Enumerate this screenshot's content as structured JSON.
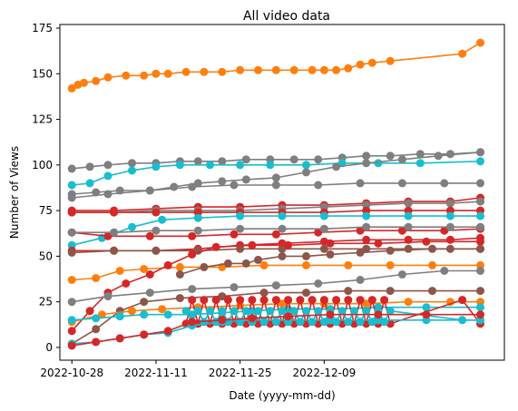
{
  "chart_data": {
    "type": "line",
    "title": "All video data",
    "xlabel": "Date (yyyy-mm-dd)",
    "ylabel": "Number of Views",
    "x_tick_labels": [
      "2022-10-28",
      "2022-11-11",
      "2022-11-25",
      "2022-12-09"
    ],
    "x_range": [
      "2022-10-26",
      "2023-01-08"
    ],
    "y_ticks": [
      0,
      25,
      50,
      75,
      100,
      125,
      150,
      175
    ],
    "ylim": [
      -7,
      177
    ],
    "grid": false,
    "legend": false,
    "marker": "circle",
    "series": [
      {
        "color": "#ff7f0e",
        "x": [
          "2022-10-28",
          "2022-10-29",
          "2022-10-30",
          "2022-11-01",
          "2022-11-03",
          "2022-11-06",
          "2022-11-09",
          "2022-11-11",
          "2022-11-13",
          "2022-11-16",
          "2022-11-19",
          "2022-11-22",
          "2022-11-25",
          "2022-11-28",
          "2022-12-01",
          "2022-12-04",
          "2022-12-07",
          "2022-12-09",
          "2022-12-11",
          "2022-12-13",
          "2022-12-15",
          "2022-12-17",
          "2022-12-20",
          "2023-01-01",
          "2023-01-04"
        ],
        "y": [
          142,
          144,
          145,
          146,
          148,
          149,
          149,
          150,
          150,
          151,
          151,
          151,
          152,
          152,
          152,
          152,
          152,
          152,
          152,
          153,
          155,
          156,
          157,
          161,
          167
        ]
      },
      {
        "color": "#7f7f7f",
        "x": [
          "2022-10-28",
          "2022-10-31",
          "2022-11-03",
          "2022-11-07",
          "2022-11-11",
          "2022-11-15",
          "2022-11-18",
          "2022-11-22",
          "2022-11-26",
          "2022-11-30",
          "2022-12-04",
          "2022-12-08",
          "2022-12-12",
          "2022-12-16",
          "2022-12-20",
          "2022-12-25",
          "2022-12-30",
          "2023-01-04"
        ],
        "y": [
          98,
          99,
          100,
          101,
          101,
          102,
          102,
          102,
          103,
          103,
          103,
          103,
          104,
          105,
          105,
          106,
          106,
          107
        ]
      },
      {
        "color": "#17becf",
        "x": [
          "2022-10-28",
          "2022-10-31",
          "2022-11-03",
          "2022-11-07",
          "2022-11-11",
          "2022-11-15",
          "2022-11-20",
          "2022-11-25",
          "2022-11-30",
          "2022-12-06",
          "2022-12-12",
          "2022-12-18",
          "2022-12-25",
          "2023-01-04"
        ],
        "y": [
          89,
          90,
          94,
          97,
          99,
          100,
          100,
          100,
          100,
          100,
          101,
          101,
          101,
          102
        ]
      },
      {
        "color": "#7f7f7f",
        "x": [
          "2022-10-28",
          "2022-11-01",
          "2022-11-05",
          "2022-11-10",
          "2022-11-14",
          "2022-11-18",
          "2022-11-22",
          "2022-11-26",
          "2022-12-01",
          "2022-12-06",
          "2022-12-11",
          "2022-12-16",
          "2022-12-22",
          "2022-12-28",
          "2023-01-04"
        ],
        "y": [
          84,
          85,
          86,
          86,
          88,
          90,
          91,
          92,
          93,
          96,
          99,
          101,
          103,
          105,
          107
        ]
      },
      {
        "color": "#7f7f7f",
        "x": [
          "2022-10-28",
          "2022-11-03",
          "2022-11-10",
          "2022-11-17",
          "2022-11-24",
          "2022-12-01",
          "2022-12-08",
          "2022-12-15",
          "2022-12-22",
          "2022-12-29",
          "2023-01-04"
        ],
        "y": [
          82,
          84,
          86,
          88,
          89,
          89,
          89,
          90,
          90,
          90,
          90
        ]
      },
      {
        "color": "#d62728",
        "x": [
          "2022-10-28",
          "2022-11-04",
          "2022-11-11",
          "2022-11-18",
          "2022-11-25",
          "2022-12-02",
          "2022-12-09",
          "2022-12-16",
          "2022-12-23",
          "2022-12-30",
          "2023-01-04"
        ],
        "y": [
          75,
          75,
          76,
          77,
          77,
          78,
          78,
          79,
          80,
          80,
          82
        ]
      },
      {
        "color": "#7f7f7f",
        "x": [
          "2022-10-28",
          "2022-11-04",
          "2022-11-11",
          "2022-11-18",
          "2022-11-25",
          "2022-12-02",
          "2022-12-09",
          "2022-12-16",
          "2022-12-23",
          "2022-12-30",
          "2023-01-04"
        ],
        "y": [
          74,
          74,
          75,
          75,
          75,
          76,
          77,
          78,
          79,
          79,
          80
        ]
      },
      {
        "color": "#d62728",
        "x": [
          "2022-10-28",
          "2022-11-04",
          "2022-11-11",
          "2022-11-18",
          "2022-11-25",
          "2022-12-02",
          "2022-12-09",
          "2022-12-16",
          "2022-12-23",
          "2022-12-30",
          "2023-01-04"
        ],
        "y": [
          74,
          74,
          74,
          74,
          74,
          74,
          74,
          75,
          75,
          75,
          75
        ]
      },
      {
        "color": "#17becf",
        "x": [
          "2022-10-28",
          "2022-11-02",
          "2022-11-07",
          "2022-11-12",
          "2022-11-18",
          "2022-11-25",
          "2022-12-02",
          "2022-12-09",
          "2022-12-16",
          "2022-12-23",
          "2022-12-30",
          "2023-01-04"
        ],
        "y": [
          56,
          60,
          66,
          70,
          71,
          72,
          72,
          72,
          72,
          72,
          72,
          72
        ]
      },
      {
        "color": "#d62728",
        "x": [
          "2022-10-28",
          "2022-11-03",
          "2022-11-10",
          "2022-11-17",
          "2022-11-24",
          "2022-12-01",
          "2022-12-08",
          "2022-12-15",
          "2022-12-22",
          "2022-12-29",
          "2023-01-04"
        ],
        "y": [
          63,
          61,
          61,
          61,
          62,
          62,
          63,
          64,
          64,
          64,
          65
        ]
      },
      {
        "color": "#7f7f7f",
        "x": [
          "2022-10-28",
          "2022-11-04",
          "2022-11-11",
          "2022-11-18",
          "2022-11-25",
          "2022-12-02",
          "2022-12-09",
          "2022-12-16",
          "2022-12-23",
          "2022-12-30",
          "2023-01-04"
        ],
        "y": [
          63,
          63,
          64,
          64,
          65,
          65,
          65,
          66,
          66,
          66,
          66
        ]
      },
      {
        "color": "#d62728",
        "x": [
          "2022-10-28",
          "2022-11-04",
          "2022-11-11",
          "2022-11-18",
          "2022-11-25",
          "2022-12-02",
          "2022-12-09",
          "2022-12-16",
          "2022-12-23",
          "2022-12-30",
          "2023-01-04"
        ],
        "y": [
          53,
          53,
          53,
          54,
          56,
          57,
          58,
          59,
          59,
          59,
          60
        ]
      },
      {
        "color": "#8c564b",
        "x": [
          "2022-10-28",
          "2022-11-04",
          "2022-11-11",
          "2022-11-18",
          "2022-11-25",
          "2022-12-02",
          "2022-12-09",
          "2022-12-16",
          "2022-12-23",
          "2022-12-30",
          "2023-01-04"
        ],
        "y": [
          52,
          53,
          53,
          53,
          54,
          54,
          54,
          54,
          54,
          54,
          54
        ]
      },
      {
        "color": "#ff7f0e",
        "x": [
          "2022-10-28",
          "2022-11-01",
          "2022-11-05",
          "2022-11-09",
          "2022-11-15",
          "2022-11-22",
          "2022-11-29",
          "2022-12-06",
          "2022-12-13",
          "2022-12-20",
          "2022-12-27",
          "2023-01-04"
        ],
        "y": [
          37,
          38,
          42,
          43,
          44,
          44,
          45,
          45,
          45,
          45,
          45,
          45
        ]
      },
      {
        "color": "#d62728",
        "x": [
          "2022-10-28",
          "2022-10-31",
          "2022-11-03",
          "2022-11-06",
          "2022-11-10",
          "2022-11-13",
          "2022-11-17",
          "2022-11-21",
          "2022-11-27",
          "2022-12-03",
          "2022-12-10",
          "2022-12-18",
          "2022-12-26",
          "2023-01-04"
        ],
        "y": [
          9,
          20,
          30,
          35,
          40,
          45,
          51,
          55,
          56,
          56,
          57,
          57,
          58,
          58
        ]
      },
      {
        "color": "#7f7f7f",
        "x": [
          "2022-10-28",
          "2022-11-03",
          "2022-11-10",
          "2022-11-17",
          "2022-11-24",
          "2022-12-01",
          "2022-12-08",
          "2022-12-15",
          "2022-12-22",
          "2022-12-29",
          "2023-01-04"
        ],
        "y": [
          25,
          28,
          30,
          32,
          33,
          34,
          35,
          37,
          40,
          42,
          42
        ]
      },
      {
        "color": "#8c564b",
        "x": [
          "2022-10-28",
          "2022-11-01",
          "2022-11-05",
          "2022-11-09",
          "2022-11-15",
          "2022-11-22",
          "2022-11-29",
          "2022-12-06",
          "2022-12-13",
          "2022-12-20",
          "2022-12-27",
          "2023-01-04"
        ],
        "y": [
          2,
          10,
          20,
          25,
          27,
          28,
          30,
          30,
          31,
          31,
          31,
          31
        ]
      },
      {
        "color": "#ff7f0e",
        "x": [
          "2022-10-28",
          "2022-11-02",
          "2022-11-07",
          "2022-11-12",
          "2022-11-18",
          "2022-11-25",
          "2022-12-02",
          "2022-12-09",
          "2022-12-16",
          "2022-12-23",
          "2022-12-30",
          "2023-01-04"
        ],
        "y": [
          14,
          18,
          20,
          21,
          22,
          23,
          24,
          24,
          24,
          25,
          25,
          25
        ]
      },
      {
        "color": "#17becf",
        "x": [
          "2022-10-28",
          "2022-11-01",
          "2022-11-05",
          "2022-11-09",
          "2022-11-13",
          "2022-11-17",
          "2022-11-22",
          "2022-11-27",
          "2022-12-03",
          "2022-12-10",
          "2022-12-18",
          "2022-12-26",
          "2023-01-04"
        ],
        "y": [
          15,
          16,
          17,
          18,
          18,
          18,
          19,
          20,
          21,
          21,
          22,
          22,
          22
        ]
      },
      {
        "color": "#d62728",
        "x": [
          "2022-11-16",
          "2022-11-17",
          "2022-11-18",
          "2022-11-19",
          "2022-11-20",
          "2022-11-21",
          "2022-11-22",
          "2022-11-23",
          "2022-11-24",
          "2022-11-25",
          "2022-11-26",
          "2022-11-27",
          "2022-11-28",
          "2022-11-29",
          "2022-11-30",
          "2022-12-01",
          "2022-12-02",
          "2022-12-03",
          "2022-12-04",
          "2022-12-05",
          "2022-12-06",
          "2022-12-07",
          "2022-12-08",
          "2022-12-09",
          "2022-12-10",
          "2022-12-11",
          "2022-12-12",
          "2022-12-13",
          "2022-12-14",
          "2022-12-15",
          "2022-12-16",
          "2022-12-17",
          "2022-12-18",
          "2022-12-19",
          "2022-12-20",
          "2023-01-01",
          "2023-01-04"
        ],
        "y": [
          13,
          26,
          13,
          26,
          13,
          26,
          13,
          26,
          13,
          26,
          13,
          26,
          13,
          26,
          13,
          26,
          13,
          26,
          13,
          26,
          13,
          26,
          13,
          26,
          13,
          26,
          13,
          26,
          13,
          26,
          13,
          26,
          13,
          26,
          13,
          26,
          13
        ]
      },
      {
        "color": "#17becf",
        "x": [
          "2022-11-16",
          "2022-11-17",
          "2022-11-18",
          "2022-11-19",
          "2022-11-20",
          "2022-11-21",
          "2022-11-22",
          "2022-11-23",
          "2022-11-24",
          "2022-11-25",
          "2022-11-26",
          "2022-11-27",
          "2022-11-28",
          "2022-11-29",
          "2022-11-30",
          "2022-12-01",
          "2022-12-02",
          "2022-12-03",
          "2022-12-04",
          "2022-12-05",
          "2022-12-06",
          "2022-12-07",
          "2022-12-08",
          "2022-12-09",
          "2022-12-10",
          "2022-12-11",
          "2022-12-12",
          "2022-12-13",
          "2022-12-14",
          "2022-12-15",
          "2022-12-16",
          "2022-12-17",
          "2022-12-18",
          "2022-12-19",
          "2022-12-20",
          "2023-01-01",
          "2023-01-04"
        ],
        "y": [
          20,
          14,
          20,
          14,
          20,
          14,
          20,
          14,
          20,
          14,
          20,
          14,
          20,
          14,
          20,
          14,
          20,
          14,
          20,
          14,
          20,
          14,
          20,
          14,
          20,
          14,
          20,
          14,
          20,
          14,
          20,
          14,
          20,
          14,
          20,
          15,
          15
        ]
      },
      {
        "color": "#17becf",
        "x": [
          "2022-10-28",
          "2022-11-01",
          "2022-11-05",
          "2022-11-09",
          "2022-11-13",
          "2022-11-17",
          "2022-11-22",
          "2022-11-27",
          "2022-12-03",
          "2022-12-10",
          "2022-12-18",
          "2022-12-26",
          "2023-01-04"
        ],
        "y": [
          2,
          3,
          5,
          7,
          8,
          12,
          14,
          15,
          15,
          15,
          15,
          15,
          15
        ]
      },
      {
        "color": "#d62728",
        "x": [
          "2022-10-28",
          "2022-11-01",
          "2022-11-05",
          "2022-11-09",
          "2022-11-13",
          "2022-11-17",
          "2022-11-22",
          "2022-11-27",
          "2022-12-03",
          "2022-12-10",
          "2022-12-18",
          "2022-12-26",
          "2023-01-04"
        ],
        "y": [
          1,
          3,
          5,
          7,
          9,
          14,
          15,
          16,
          17,
          18,
          18,
          18,
          18
        ]
      },
      {
        "color": "#8c564b",
        "x": [
          "2022-11-15",
          "2022-11-19",
          "2022-11-23",
          "2022-11-26",
          "2022-11-28",
          "2022-12-02",
          "2022-12-06",
          "2022-12-10",
          "2022-12-15",
          "2022-12-20",
          "2022-12-27",
          "2023-01-04"
        ],
        "y": [
          40,
          44,
          46,
          46,
          48,
          50,
          50,
          51,
          52,
          53,
          54,
          54
        ]
      }
    ]
  }
}
